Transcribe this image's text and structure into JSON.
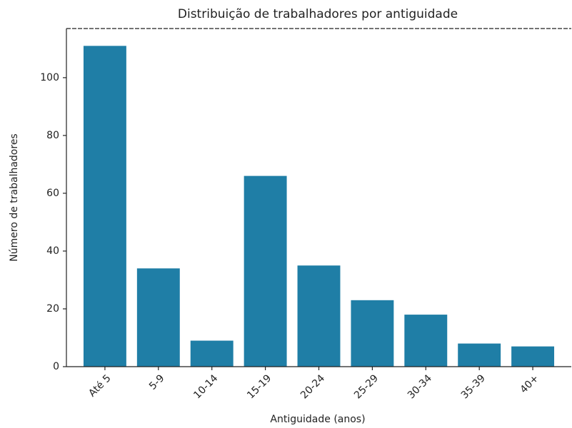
{
  "chart_data": {
    "type": "bar",
    "title": "Distribuição de trabalhadores por antiguidade",
    "xlabel": "Antiguidade (anos)",
    "ylabel": "Número de trabalhadores",
    "categories": [
      "Até 5",
      "5-9",
      "10-14",
      "15-19",
      "20-24",
      "25-29",
      "30-34",
      "35-39",
      "40+"
    ],
    "values": [
      111,
      34,
      9,
      66,
      35,
      23,
      18,
      8,
      7
    ],
    "color": "#1f7ea6",
    "ylim": [
      0,
      117
    ],
    "yticks": [
      0,
      20,
      40,
      60,
      80,
      100
    ],
    "grid": false
  }
}
